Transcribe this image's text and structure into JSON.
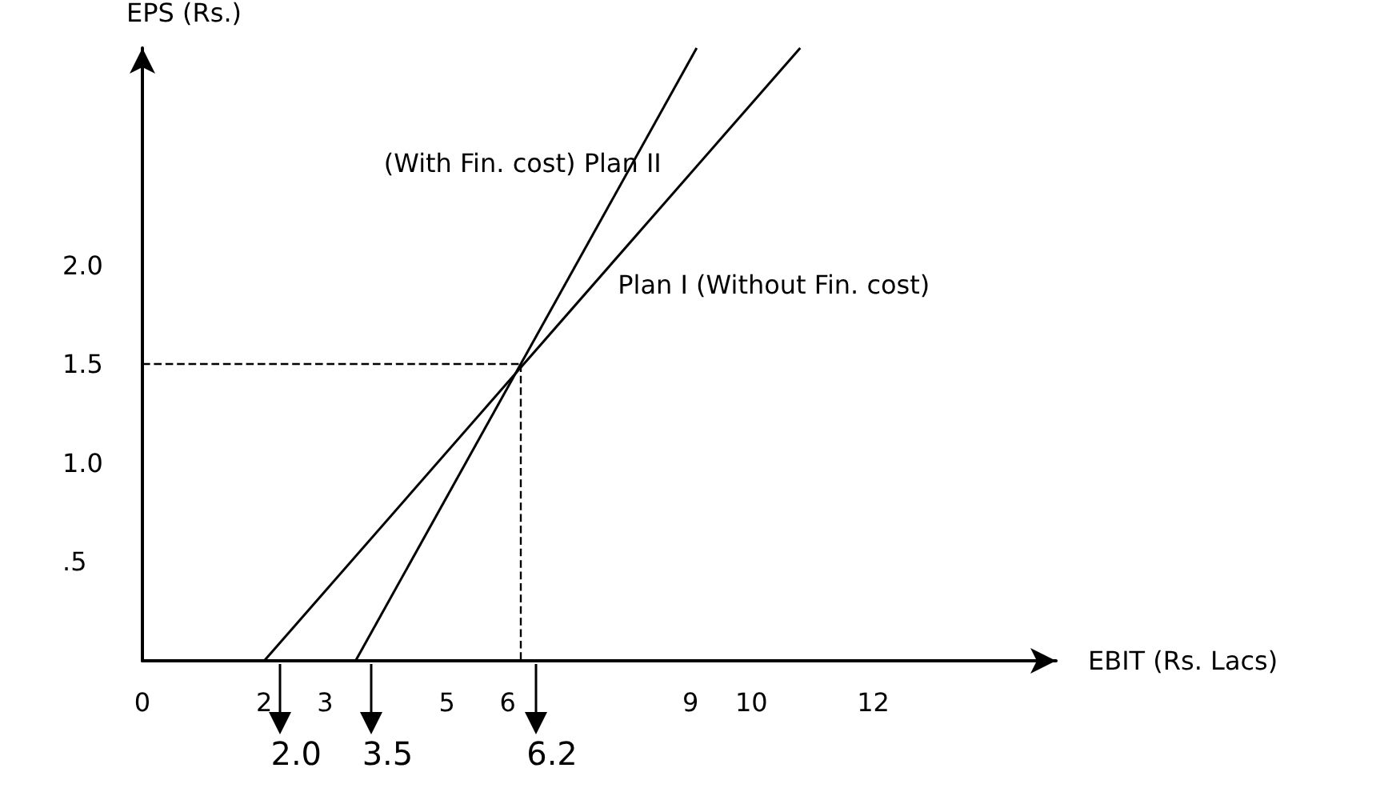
{
  "chart_data": {
    "type": "line",
    "xlabel": "EBIT (Rs. Lacs)",
    "ylabel": "EPS (Rs.)",
    "xlim": [
      0,
      15
    ],
    "xticks": [
      0,
      2,
      3,
      5,
      6,
      9,
      10,
      12
    ],
    "ylim": [
      0,
      3.1
    ],
    "yticks": [
      {
        "value": 0.5,
        "label": ".5"
      },
      {
        "value": 1,
        "label": "1.0"
      },
      {
        "value": 1.5,
        "label": "1.5"
      },
      {
        "value": 2,
        "label": "2.0"
      }
    ],
    "series": [
      {
        "name": "Plan I (Without Fin. cost)",
        "color": "#000000",
        "x": [
          2,
          10.8
        ],
        "values": [
          0,
          3.1
        ]
      },
      {
        "name": "(With Fin. cost) Plan II",
        "color": "#000000",
        "x": [
          3.5,
          9.1
        ],
        "values": [
          0,
          3.1
        ]
      }
    ],
    "ref_lines": [
      {
        "axis": "y",
        "value": 1.5,
        "line_style": "dashed",
        "color": "#000000"
      },
      {
        "axis": "x",
        "value": 6.2,
        "line_style": "dashed",
        "color": "#000000"
      }
    ],
    "annotations": [
      {
        "text": "2.0",
        "x": 2,
        "y": 0
      },
      {
        "text": "3.5",
        "x": 3.5,
        "y": 0
      },
      {
        "text": "6.2",
        "x": 6.2,
        "y": 0
      }
    ],
    "grid": false,
    "legend": false,
    "line_style": "solid"
  }
}
